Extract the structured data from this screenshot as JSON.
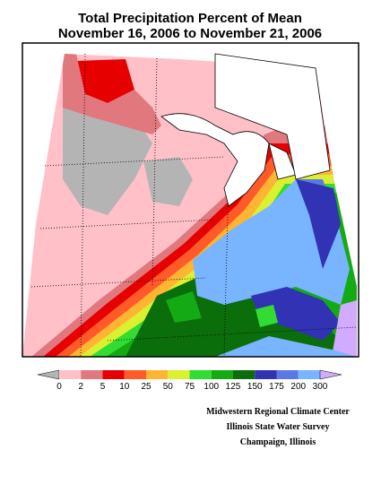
{
  "title": [
    "Total Precipitation Percent of Mean",
    "November 16, 2006 to November 21, 2006"
  ],
  "legend": {
    "labels": [
      "0",
      "2",
      "5",
      "10",
      "25",
      "50",
      "75",
      "100",
      "125",
      "150",
      "175",
      "200",
      "300"
    ],
    "colors": [
      "#b4b4b4",
      "#ffc0c8",
      "#e0787e",
      "#e60000",
      "#ff5a28",
      "#ffb432",
      "#dcf032",
      "#32dc32",
      "#14aa14",
      "#0a6e0a",
      "#3232b4",
      "#5a78e6",
      "#78b4ff",
      "#d2aaff"
    ]
  },
  "credits": [
    "Midwestern Regional Climate Center",
    "Illinois State Water Survey",
    "Champaign, Illinois"
  ]
}
